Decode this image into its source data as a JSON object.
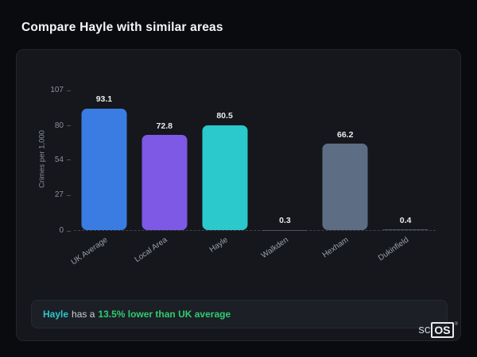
{
  "page": {
    "title": "Compare Hayle with similar areas"
  },
  "chart_data": {
    "type": "bar",
    "categories": [
      "UK Average",
      "Local Area",
      "Hayle",
      "Walkden",
      "Hexham",
      "Dukinfield"
    ],
    "values": [
      93.1,
      72.8,
      80.5,
      0.3,
      66.2,
      0.4
    ],
    "bar_colors": [
      "#3b7ce2",
      "#7d59e6",
      "#2bc8cc",
      "#4b5563",
      "#5d6e84",
      "#4b5563"
    ],
    "title": "",
    "xlabel": "",
    "ylabel": "Crimes per 1,000",
    "yticks": [
      0,
      27,
      54,
      80,
      107
    ],
    "ylim": [
      0,
      107
    ],
    "grid": false,
    "legend": "none"
  },
  "note": {
    "area": "Hayle",
    "middle": "has a",
    "highlight": "13.5% lower than UK average"
  },
  "logo": {
    "prefix": "sc",
    "suffix": "OS",
    "reg": "®"
  }
}
